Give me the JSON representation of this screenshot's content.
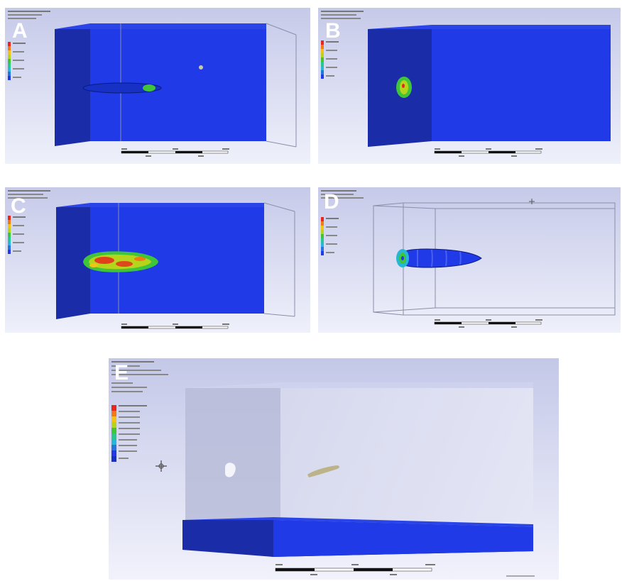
{
  "figure": {
    "panels": [
      {
        "id": "A",
        "label": "A"
      },
      {
        "id": "B",
        "label": "B"
      },
      {
        "id": "C",
        "label": "C"
      },
      {
        "id": "D",
        "label": "D"
      },
      {
        "id": "E",
        "label": "E"
      }
    ]
  },
  "colors": {
    "background_top": "#c7cbe9",
    "background_bottom": "#eef0fa",
    "block_blue": "#1f3ae6",
    "block_dark": "#14249b",
    "hot": "#e8261c",
    "warm": "#f0a012",
    "mid": "#3fc43a",
    "cool": "#27b7d6"
  }
}
